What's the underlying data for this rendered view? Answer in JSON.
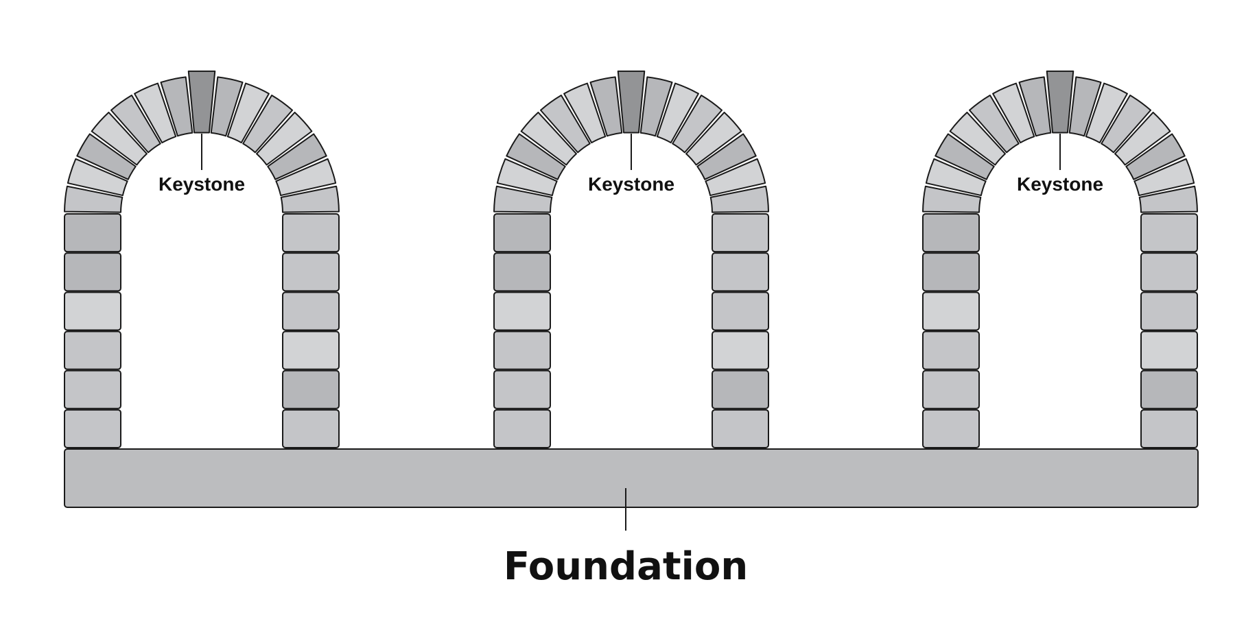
{
  "diagram": {
    "keystone_label": "Keystone",
    "foundation_label": "Foundation",
    "arch_count": 3,
    "colors": {
      "stone_light": "#d2d3d5",
      "stone_mid": "#c4c5c8",
      "stone_dark": "#b6b7ba",
      "keystone": "#939496",
      "foundation": "#bcbdbf",
      "outline": "#1a1a1a",
      "background": "#ffffff"
    },
    "arches": [
      {
        "keystone_label": "Keystone"
      },
      {
        "keystone_label": "Keystone"
      },
      {
        "keystone_label": "Keystone"
      }
    ]
  }
}
